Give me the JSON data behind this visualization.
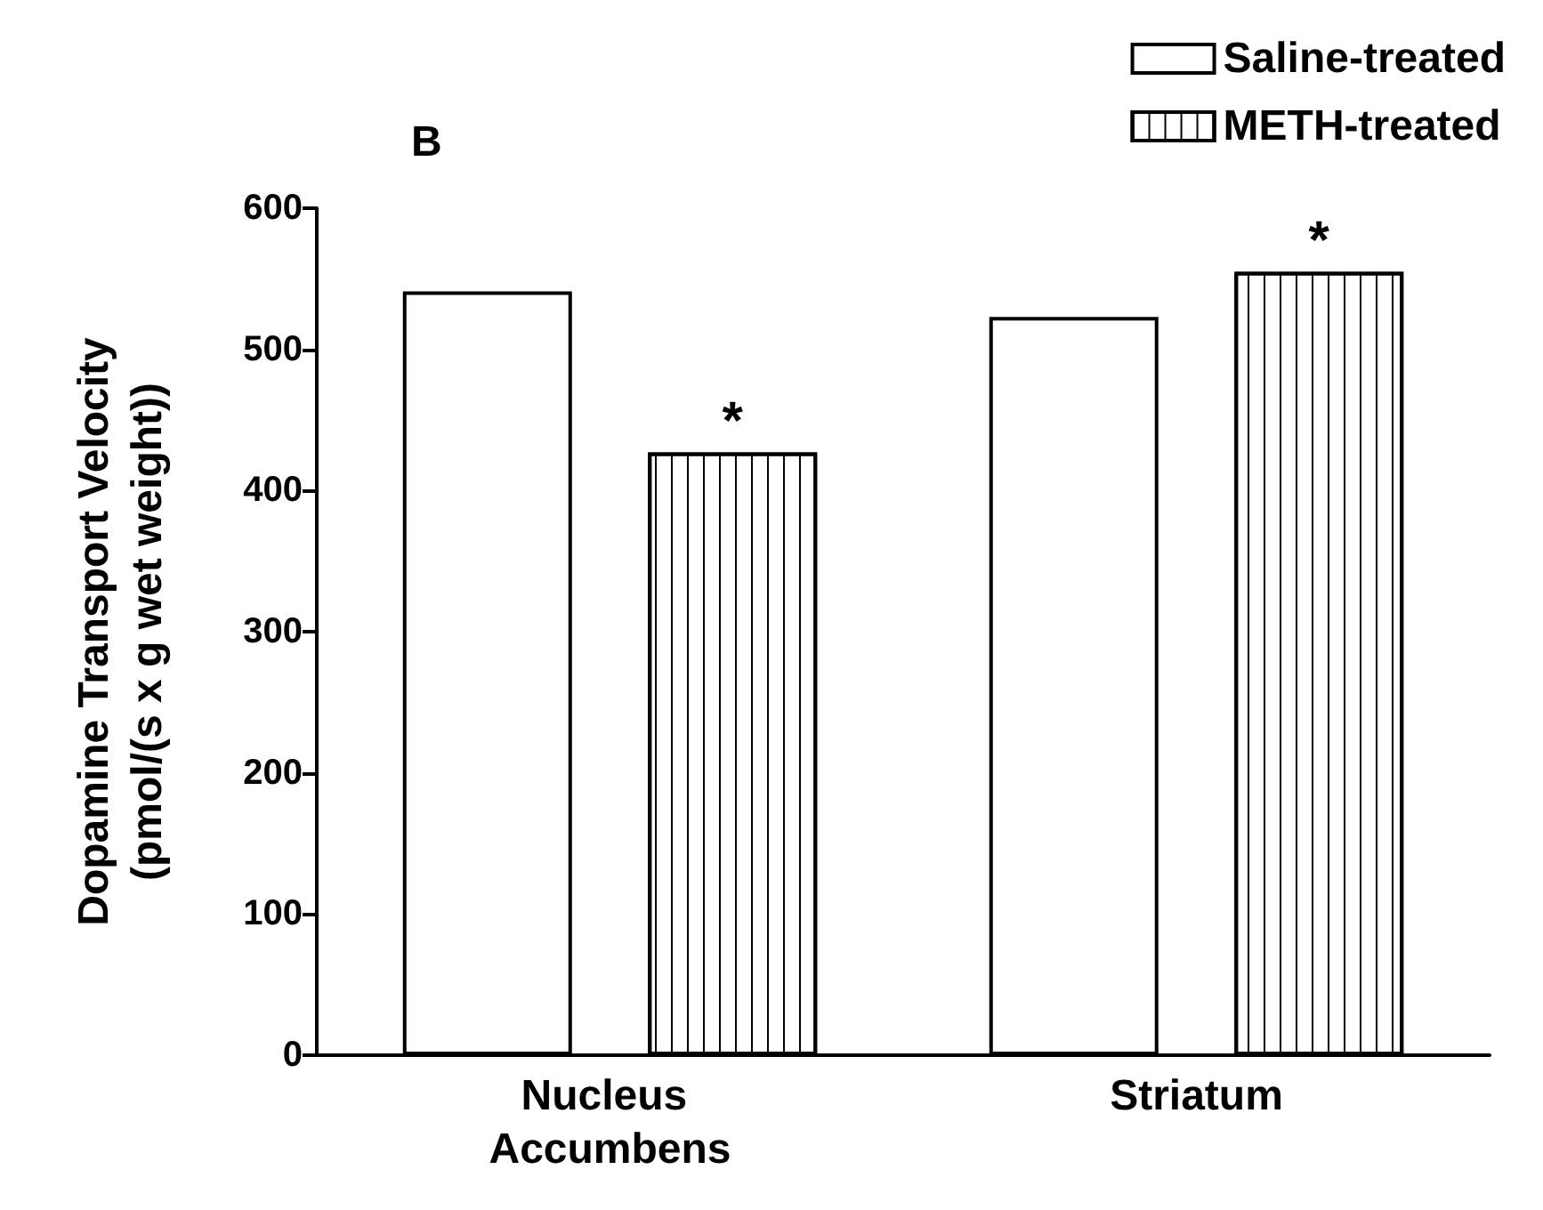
{
  "chart_data": {
    "type": "bar",
    "title": "B",
    "ylabel": "Dopamine Transport Velocity\n(pmol/(s x g wet weight))",
    "categories": [
      "Nucleus Accumbens",
      "Striatum"
    ],
    "series": [
      {
        "name": "Saline-treated",
        "color": "#ffffff",
        "values": [
          541,
          523
        ]
      },
      {
        "name": "METH-treated",
        "color": "#ffffff",
        "values": [
          427,
          555
        ],
        "value_labels": [
          "*",
          "*"
        ]
      }
    ],
    "ylim": [
      0,
      600
    ],
    "yticks": [
      0,
      100,
      200,
      300,
      400,
      500,
      600
    ],
    "grid": false,
    "legend": "top right"
  }
}
